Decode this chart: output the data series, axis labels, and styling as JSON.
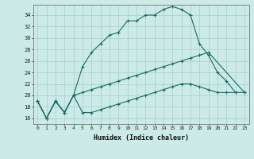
{
  "xlabel": "Humidex (Indice chaleur)",
  "background_color": "#cceae7",
  "grid_color": "#aad4d0",
  "line_color": "#1a6b65",
  "xlim": [
    -0.5,
    23.5
  ],
  "ylim": [
    15.0,
    35.8
  ],
  "yticks": [
    16,
    18,
    20,
    22,
    24,
    26,
    28,
    30,
    32,
    34
  ],
  "xticks": [
    0,
    1,
    2,
    3,
    4,
    5,
    6,
    7,
    8,
    9,
    10,
    11,
    12,
    13,
    14,
    15,
    16,
    17,
    18,
    19,
    20,
    21,
    22,
    23
  ],
  "line1_x": [
    0,
    1,
    2,
    3,
    4,
    5,
    6,
    7,
    8,
    9,
    10,
    11,
    12,
    13,
    14,
    15,
    16,
    17,
    18,
    19,
    20,
    21,
    22
  ],
  "line1_y": [
    19,
    16,
    19,
    17,
    20,
    25,
    27.5,
    29,
    30.5,
    31,
    33,
    33,
    34,
    34,
    35,
    35.5,
    35,
    34,
    29,
    27,
    24,
    22.5,
    20.5
  ],
  "line2_x": [
    0,
    1,
    2,
    3,
    4,
    5,
    6,
    7,
    8,
    9,
    10,
    11,
    12,
    13,
    14,
    15,
    16,
    17,
    18,
    19,
    23
  ],
  "line2_y": [
    19,
    16,
    19,
    17,
    20,
    20.5,
    21,
    21.5,
    22,
    22.5,
    23,
    23.5,
    24,
    24.5,
    25,
    25.5,
    26,
    26.5,
    27,
    27.5,
    20.5
  ],
  "line3_x": [
    0,
    1,
    2,
    3,
    4,
    5,
    6,
    7,
    8,
    9,
    10,
    11,
    12,
    13,
    14,
    15,
    16,
    17,
    18,
    19,
    20,
    21,
    22,
    23
  ],
  "line3_y": [
    19,
    16,
    19,
    17,
    20,
    17,
    17,
    17.5,
    18,
    18.5,
    19,
    19.5,
    20,
    20.5,
    21,
    21.5,
    22,
    22,
    21.5,
    21,
    20.5,
    20.5,
    20.5,
    20.5
  ]
}
